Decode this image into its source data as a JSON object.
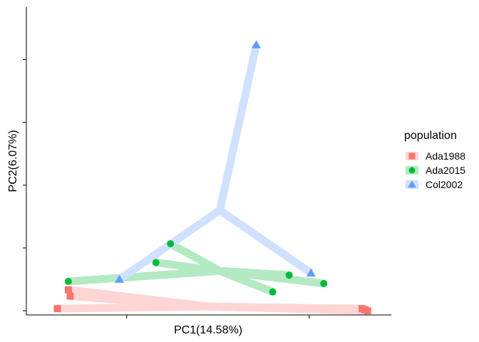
{
  "chart_data": {
    "type": "scatter",
    "subtype": "pca-spider",
    "xlabel": "PC1(14.58%)",
    "ylabel": "PC2(6.07%)",
    "xlim": [
      -1.0,
      1.0
    ],
    "ylim": [
      -0.42,
      1.05
    ],
    "xticks": [
      -0.45,
      0.55
    ],
    "yticks": [
      -0.4,
      -0.1,
      0.2,
      0.5,
      0.8
    ],
    "grid": false,
    "legend": {
      "title": "population",
      "position": "right"
    },
    "series": [
      {
        "name": "Ada1988",
        "color": "#F8766D",
        "shape": "square",
        "centroid": [
          0.0,
          -0.38
        ],
        "points": [
          [
            -0.76,
            -0.33
          ],
          [
            -0.77,
            -0.3
          ],
          [
            -0.83,
            -0.39
          ],
          [
            0.84,
            -0.39
          ],
          [
            0.855,
            -0.395
          ],
          [
            0.87,
            -0.4
          ]
        ]
      },
      {
        "name": "Ada2015",
        "color": "#00BA38",
        "shape": "circle",
        "centroid": [
          0.06,
          -0.21
        ],
        "points": [
          [
            -0.77,
            -0.26
          ],
          [
            -0.29,
            -0.17
          ],
          [
            -0.21,
            -0.08
          ],
          [
            0.35,
            -0.31
          ],
          [
            0.44,
            -0.23
          ],
          [
            0.63,
            -0.27
          ]
        ]
      },
      {
        "name": "Col2002",
        "color": "#619CFF",
        "shape": "triangle",
        "centroid": [
          0.06,
          0.08
        ],
        "points": [
          [
            -0.49,
            -0.25
          ],
          [
            0.26,
            0.87
          ],
          [
            0.56,
            -0.22
          ]
        ]
      }
    ]
  }
}
